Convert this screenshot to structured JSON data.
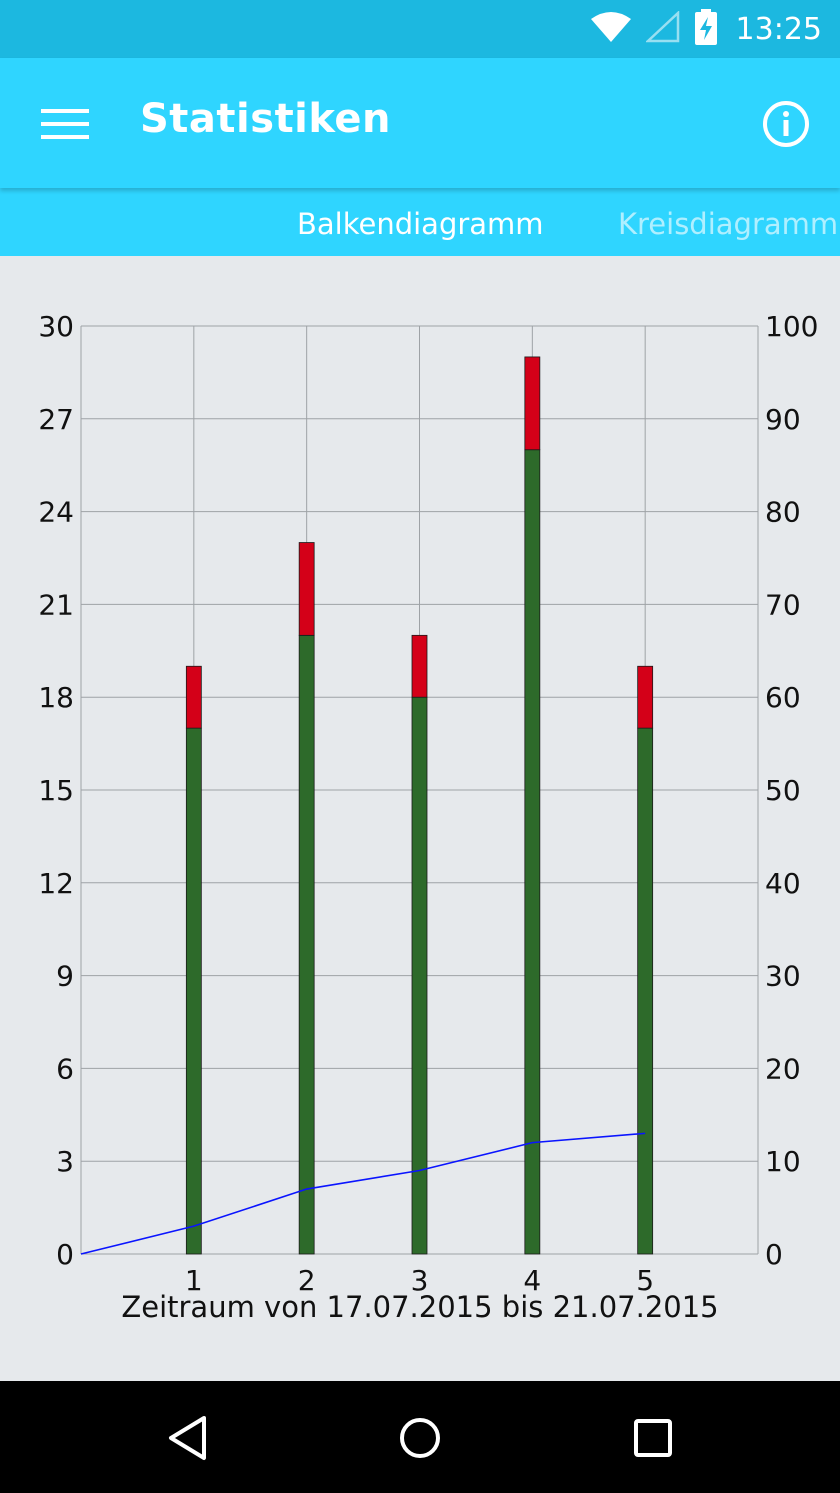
{
  "status_bar": {
    "time": "13:25",
    "icons": [
      "wifi-icon",
      "cell-signal-icon",
      "battery-charging-icon"
    ]
  },
  "app_bar": {
    "title": "Statistiken",
    "menu_icon": "hamburger-menu-icon",
    "info_icon": "info-icon"
  },
  "tabs": [
    {
      "label": "Balkendiagramm",
      "active": true
    },
    {
      "label": "Kreisdiagramm",
      "active": false
    }
  ],
  "colors": {
    "primary": "#2fd5ff",
    "status_bar": "#1cb8e0",
    "bar_green": "#2d6a2a",
    "bar_red": "#d40018",
    "line_blue": "#0a14ff"
  },
  "chart_data": {
    "type": "bar",
    "stacked": true,
    "categories": [
      "1",
      "2",
      "3",
      "4",
      "5"
    ],
    "series": [
      {
        "values": [
          17,
          20,
          18,
          26,
          17
        ]
      },
      {
        "values": [
          2,
          3,
          2,
          3,
          2
        ]
      }
    ],
    "line_series": {
      "axis": "right",
      "x": [
        0,
        1,
        2,
        3,
        4,
        5
      ],
      "values": [
        0,
        3,
        7,
        9,
        12,
        13
      ]
    },
    "xlim": [
      0,
      6
    ],
    "ylim": [
      0,
      30
    ],
    "y_ticks": [
      0,
      3,
      6,
      9,
      12,
      15,
      18,
      21,
      24,
      27,
      30
    ],
    "y2lim": [
      0,
      100
    ],
    "y2_ticks": [
      0,
      10,
      20,
      30,
      40,
      50,
      60,
      70,
      80,
      90,
      100
    ],
    "x_ticks": [
      "1",
      "2",
      "3",
      "4",
      "5"
    ],
    "xlabel": "Zeitraum von 17.07.2015 bis 21.07.2015",
    "grid": true
  },
  "nav_bar": {
    "icons": [
      "back-icon",
      "home-icon",
      "recents-icon"
    ]
  }
}
